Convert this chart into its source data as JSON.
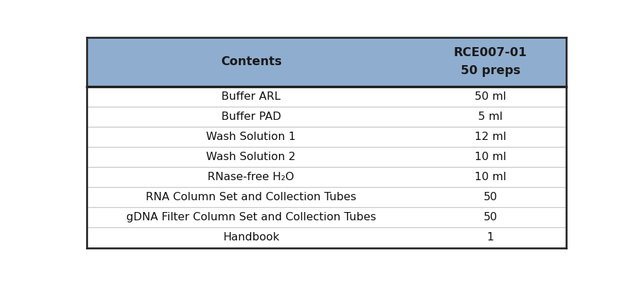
{
  "header": [
    "Contents",
    "RCE007-01\n50 preps"
  ],
  "rows": [
    [
      "Buffer ARL",
      "50 ml"
    ],
    [
      "Buffer PAD",
      "5 ml"
    ],
    [
      "Wash Solution 1",
      "12 ml"
    ],
    [
      "Wash Solution 2",
      "10 ml"
    ],
    [
      "RNase-free H₂O",
      "10 ml"
    ],
    [
      "RNA Column Set and Collection Tubes",
      "50"
    ],
    [
      "gDNA Filter Column Set and Collection Tubes",
      "50"
    ],
    [
      "Handbook",
      "1"
    ]
  ],
  "header_bg_color": "#8faecf",
  "header_text_color": "#1a1a1a",
  "row_bg_color": "#ffffff",
  "divider_color": "#c8c8c8",
  "outer_border_color": "#2a2a2a",
  "header_border_color": "#1a1a1a",
  "figsize": [
    9.18,
    4.07
  ],
  "dpi": 100,
  "header_fontsize": 12.5,
  "row_fontsize": 11.5,
  "col_split": 0.685
}
